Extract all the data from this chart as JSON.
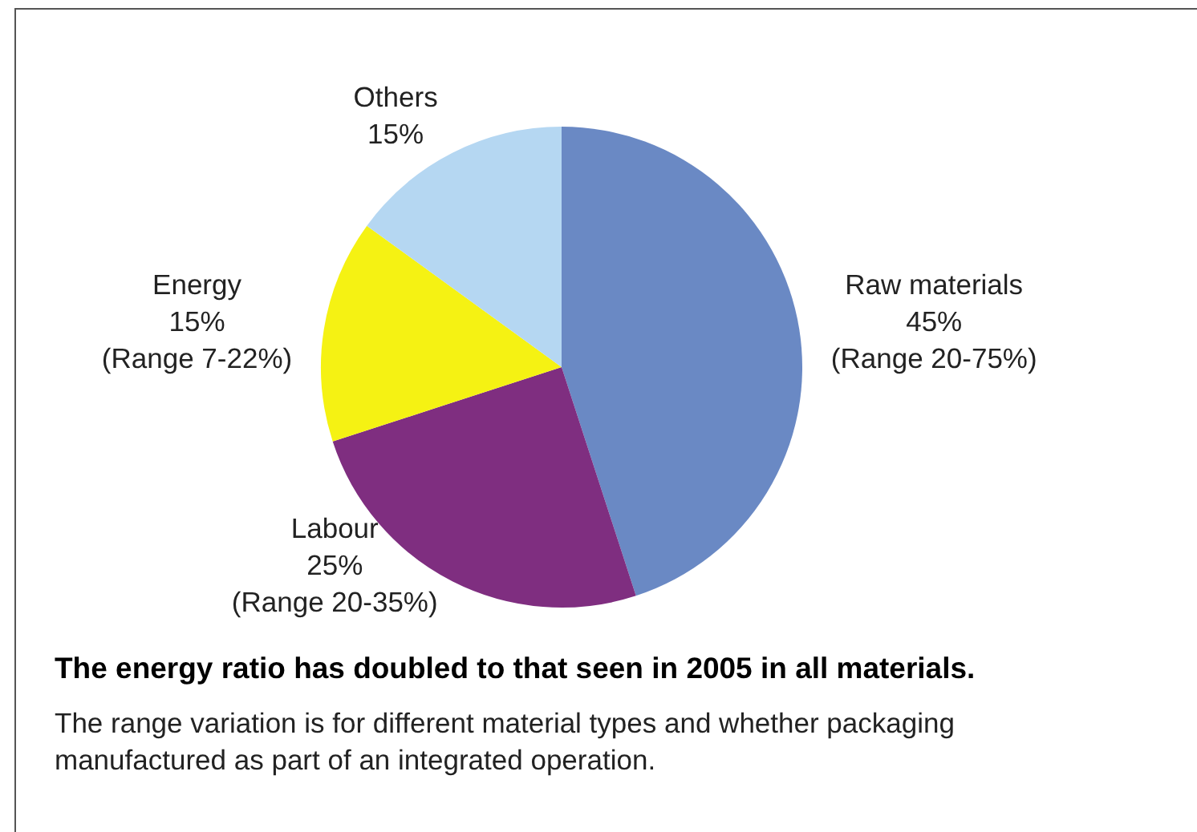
{
  "chart_data": {
    "type": "pie",
    "title": "The energy ratio has doubled to that seen in 2005 in all materials.",
    "categories": [
      "Raw materials",
      "Labour",
      "Energy",
      "Others"
    ],
    "values": [
      45,
      25,
      15,
      15
    ],
    "colors": [
      "#6a89c4",
      "#7f2e80",
      "#f5f213",
      "#b5d7f2"
    ],
    "value_labels": [
      "45%\n(Range 20-75%)",
      "25%\n(Range 20-35%)",
      "15%\n(Range 7-22%)",
      "15%"
    ],
    "legend": false,
    "annotations": [
      "The range variation is for different material types and whether packaging manufactured as part of an integrated operation."
    ]
  }
}
